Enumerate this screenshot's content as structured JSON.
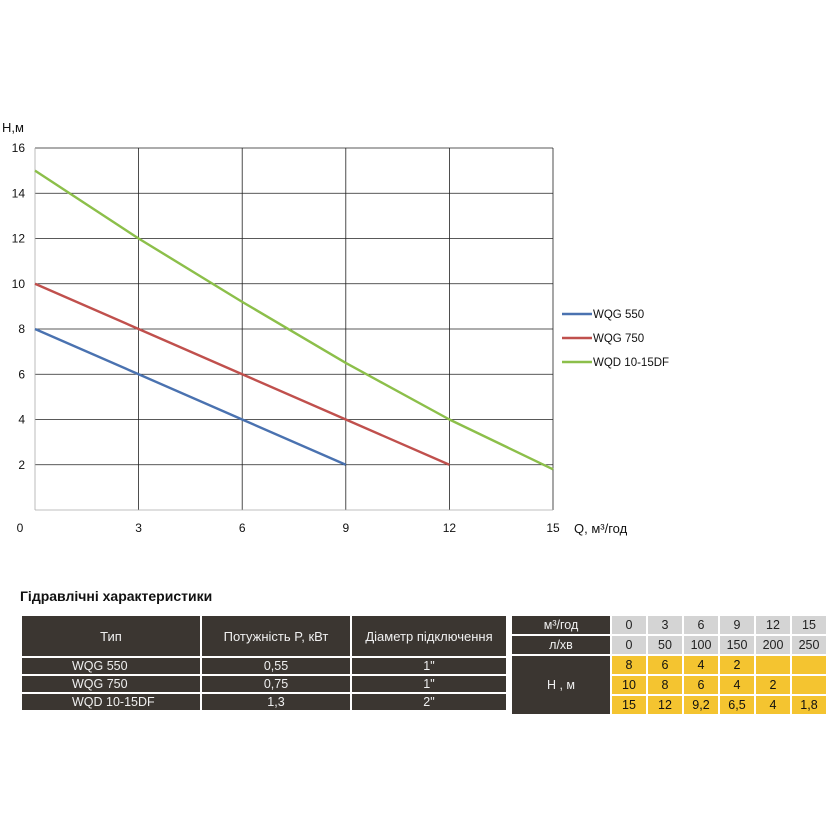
{
  "chart_data": {
    "type": "line",
    "ylabel": "H,м",
    "xlabel": "Q, м³/год",
    "xlim": [
      0,
      15
    ],
    "ylim": [
      0,
      16
    ],
    "x_ticks": [
      0,
      3,
      6,
      9,
      12,
      15
    ],
    "y_ticks": [
      2,
      4,
      6,
      8,
      10,
      12,
      14,
      16
    ],
    "grid": true,
    "legend_position": "right",
    "series": [
      {
        "name": "WQG 550",
        "color": "#4a72b0",
        "x": [
          0,
          3,
          6,
          9
        ],
        "y": [
          8,
          6,
          4,
          2
        ]
      },
      {
        "name": "WQG 750",
        "color": "#c0504d",
        "x": [
          0,
          3,
          6,
          9,
          12
        ],
        "y": [
          10,
          8,
          6,
          4,
          2
        ]
      },
      {
        "name": "WQD 10-15DF",
        "color": "#8cbf4a",
        "x": [
          0,
          3,
          6,
          9,
          12,
          15
        ],
        "y": [
          15,
          12,
          9.2,
          6.5,
          4,
          1.8
        ]
      }
    ]
  },
  "table": {
    "title": "Гідравлічні характеристики",
    "headers": {
      "type": "Тип",
      "power": "Потужність  P, кВт",
      "diameter": "Діаметр підключення"
    },
    "rows": [
      {
        "type": "WQG 550",
        "power": "0,55",
        "diameter": "1\""
      },
      {
        "type": "WQG 750",
        "power": "0,75",
        "diameter": "1\""
      },
      {
        "type": "WQD 10-15DF",
        "power": "1,3",
        "diameter": "2\""
      }
    ],
    "flow_m3_label": "м³/год",
    "flow_lmin_label": "л/хв",
    "head_label": "Н , м",
    "flow_m3": [
      "0",
      "3",
      "6",
      "9",
      "12",
      "15"
    ],
    "flow_lmin": [
      "0",
      "50",
      "100",
      "150",
      "200",
      "250"
    ],
    "head": [
      [
        "8",
        "6",
        "4",
        "2",
        "",
        ""
      ],
      [
        "10",
        "8",
        "6",
        "4",
        "2",
        ""
      ],
      [
        "15",
        "12",
        "9,2",
        "6,5",
        "4",
        "1,8"
      ]
    ]
  }
}
